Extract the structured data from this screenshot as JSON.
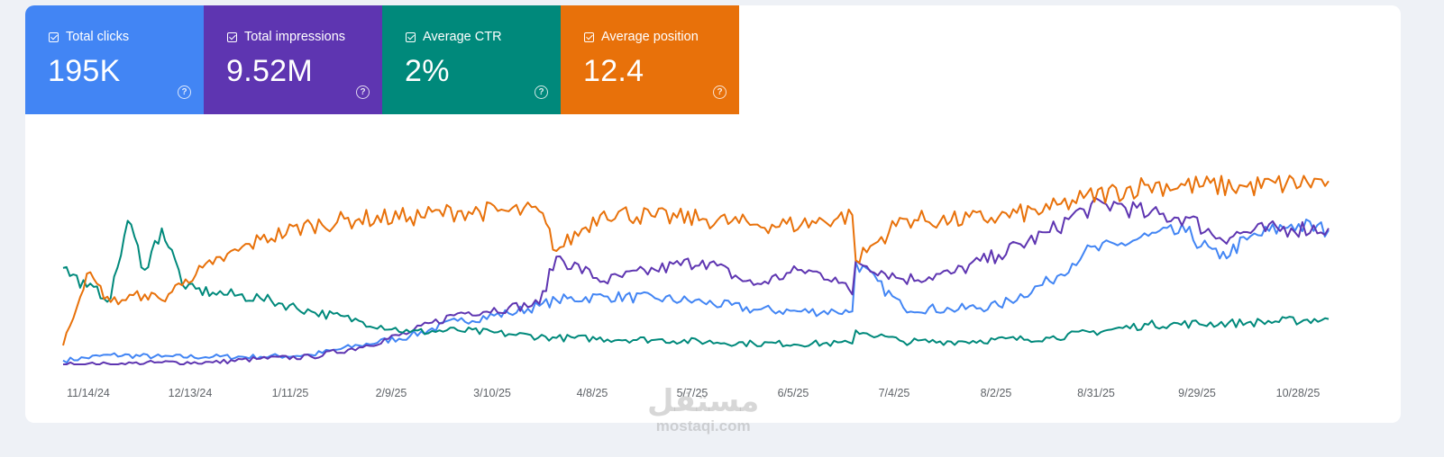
{
  "metrics": [
    {
      "label": "Total clicks",
      "value": "195K",
      "color": "#4285f4"
    },
    {
      "label": "Total impressions",
      "value": "9.52M",
      "color": "#5e35b1"
    },
    {
      "label": "Average CTR",
      "value": "2%",
      "color": "#00897b"
    },
    {
      "label": "Average position",
      "value": "12.4",
      "color": "#e8710a"
    }
  ],
  "help_icon": "help-circle-icon",
  "watermark": {
    "logo": "مستقل",
    "text": "mostaqi.com"
  },
  "chart_data": {
    "type": "line",
    "x_tick_labels": [
      "11/14/24",
      "12/13/24",
      "1/11/25",
      "2/9/25",
      "3/10/25",
      "4/8/25",
      "5/7/25",
      "6/5/25",
      "7/4/25",
      "8/2/25",
      "8/31/25",
      "9/29/25",
      "10/28/25"
    ],
    "x_range": [
      "11/14/24",
      "11/21/25"
    ],
    "y_scale": "relative 0-100 per series (no y axis shown)",
    "grid": false,
    "legend": "metric cards at top",
    "series": [
      {
        "name": "Total clicks",
        "color": "#4285f4",
        "x": [
          "11/14/24",
          "11/28/24",
          "12/13/24",
          "12/28/24",
          "1/11/25",
          "1/26/25",
          "2/9/25",
          "2/24/25",
          "3/10/25",
          "3/25/25",
          "4/3/25",
          "4/8/25",
          "4/22/25",
          "5/7/25",
          "5/21/25",
          "6/5/25",
          "6/19/25",
          "6/29/25",
          "7/4/25",
          "7/5/25",
          "7/19/25",
          "8/2/25",
          "8/16/25",
          "8/31/25",
          "9/10/25",
          "9/20/25",
          "9/29/25",
          "10/10/25",
          "10/20/25",
          "10/28/25",
          "11/10/25",
          "11/21/25"
        ],
        "values": [
          2,
          5,
          4,
          4,
          4,
          5,
          10,
          15,
          23,
          27,
          31,
          34,
          36,
          35,
          33,
          29,
          28,
          28,
          28,
          54,
          30,
          29,
          31,
          44,
          59,
          63,
          68,
          70,
          56,
          66,
          74,
          71
        ]
      },
      {
        "name": "Total impressions",
        "color": "#5e35b1",
        "x": [
          "11/14/24",
          "11/28/24",
          "12/13/24",
          "12/28/24",
          "1/11/25",
          "1/26/25",
          "2/9/25",
          "2/24/25",
          "3/10/25",
          "3/25/25",
          "4/3/25",
          "4/8/25",
          "4/22/25",
          "5/7/25",
          "5/21/25",
          "6/5/25",
          "6/19/25",
          "6/29/25",
          "7/4/25",
          "7/5/25",
          "7/19/25",
          "8/2/25",
          "8/16/25",
          "8/31/25",
          "9/10/25",
          "9/20/25",
          "9/29/25",
          "10/10/25",
          "10/20/25",
          "10/28/25",
          "11/10/25",
          "11/21/25"
        ],
        "values": [
          0,
          0,
          1,
          1,
          3,
          4,
          9,
          17,
          27,
          30,
          32,
          57,
          44,
          50,
          55,
          42,
          50,
          46,
          37,
          55,
          45,
          48,
          58,
          70,
          82,
          85,
          79,
          78,
          67,
          70,
          72,
          72
        ]
      },
      {
        "name": "Average CTR",
        "color": "#00897b",
        "x": [
          "11/14/24",
          "11/21/24",
          "11/28/24",
          "12/3/24",
          "12/8/24",
          "12/13/24",
          "12/20/24",
          "12/28/24",
          "1/11/25",
          "1/26/25",
          "2/9/25",
          "2/24/25",
          "3/10/25",
          "3/25/25",
          "4/8/25",
          "5/7/25",
          "6/5/25",
          "7/4/25",
          "7/5/25",
          "7/19/25",
          "8/2/25",
          "8/31/25",
          "9/29/25",
          "10/28/25",
          "11/21/25"
        ],
        "values": [
          51,
          41,
          35,
          76,
          50,
          72,
          40,
          38,
          35,
          28,
          23,
          17,
          18,
          16,
          14,
          13,
          11,
          11,
          18,
          12,
          12,
          14,
          21,
          22,
          24
        ]
      },
      {
        "name": "Average position",
        "color": "#e8710a",
        "x": [
          "11/14/24",
          "11/21/24",
          "11/28/24",
          "12/8/24",
          "12/13/24",
          "12/20/24",
          "12/28/24",
          "1/11/25",
          "1/26/25",
          "2/9/25",
          "2/24/25",
          "3/10/25",
          "3/25/25",
          "4/3/25",
          "4/8/25",
          "4/22/25",
          "5/7/25",
          "5/21/25",
          "6/5/25",
          "6/19/25",
          "7/4/25",
          "7/5/25",
          "7/19/25",
          "8/2/25",
          "8/16/25",
          "8/31/25",
          "9/10/25",
          "9/29/25",
          "10/28/25",
          "11/21/25"
        ],
        "values": [
          10,
          48,
          33,
          37,
          34,
          45,
          53,
          66,
          74,
          77,
          78,
          81,
          81,
          81,
          60,
          81,
          78,
          77,
          74,
          74,
          79,
          55,
          77,
          76,
          78,
          82,
          88,
          95,
          94,
          97
        ]
      }
    ]
  }
}
